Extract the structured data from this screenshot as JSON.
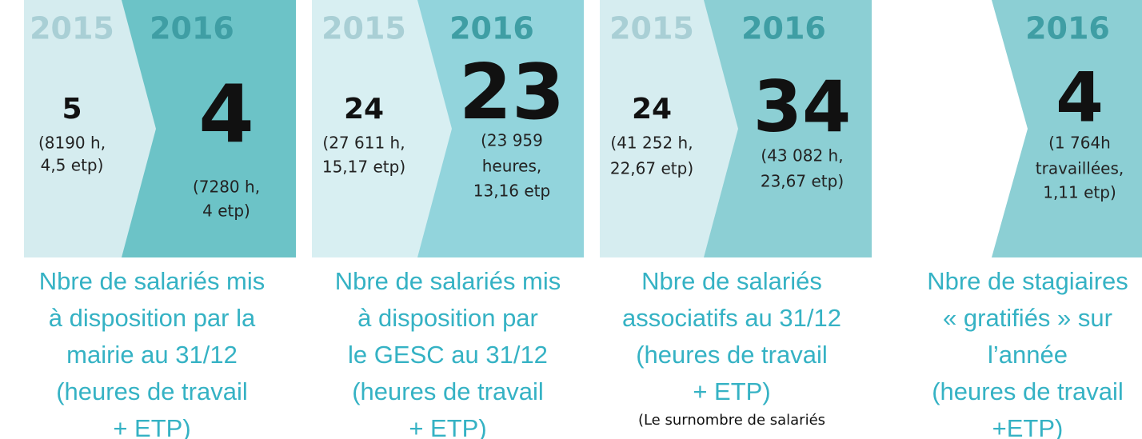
{
  "panels": [
    {
      "year_a": "2015",
      "value_a": "5",
      "detail_a": [
        "(8190 h,",
        "4,5 etp)"
      ],
      "year_b": "2016",
      "value_b": "4",
      "detail_b": [
        "(7280 h,",
        "4 etp)"
      ],
      "caption": [
        "Nbre de salariés mis",
        "à disposition par la",
        "mairie au 31/12",
        "(heures de travail",
        "+ ETP)"
      ]
    },
    {
      "year_a": "2015",
      "value_a": "24",
      "detail_a": [
        "(27 611 h,",
        "15,17 etp)"
      ],
      "year_b": "2016",
      "value_b": "23",
      "detail_b": [
        "(23 959",
        "heures,",
        "13,16 etp"
      ],
      "caption": [
        "Nbre de salariés mis",
        "à disposition par",
        "le GESC au 31/12",
        "(heures de travail",
        "+ ETP)"
      ]
    },
    {
      "year_a": "2015",
      "value_a": "24",
      "detail_a": [
        "(41 252 h,",
        "22,67 etp)"
      ],
      "year_b": "2016",
      "value_b": "34",
      "detail_b": [
        "(43 082 h,",
        "23,67 etp)"
      ],
      "caption": [
        "Nbre de salariés",
        "associatifs au 31/12",
        "(heures de travail",
        "+ ETP)"
      ],
      "note": "(Le surnombre de salariés"
    },
    {
      "year_b": "2016",
      "value_b": "4",
      "detail_b": [
        "(1 764h",
        "travaillées,",
        "1,11 etp)"
      ],
      "caption": [
        "Nbre de stagiaires",
        "« gratifiés » sur",
        "l’année",
        "(heures de travail",
        "+ETP)"
      ]
    }
  ]
}
